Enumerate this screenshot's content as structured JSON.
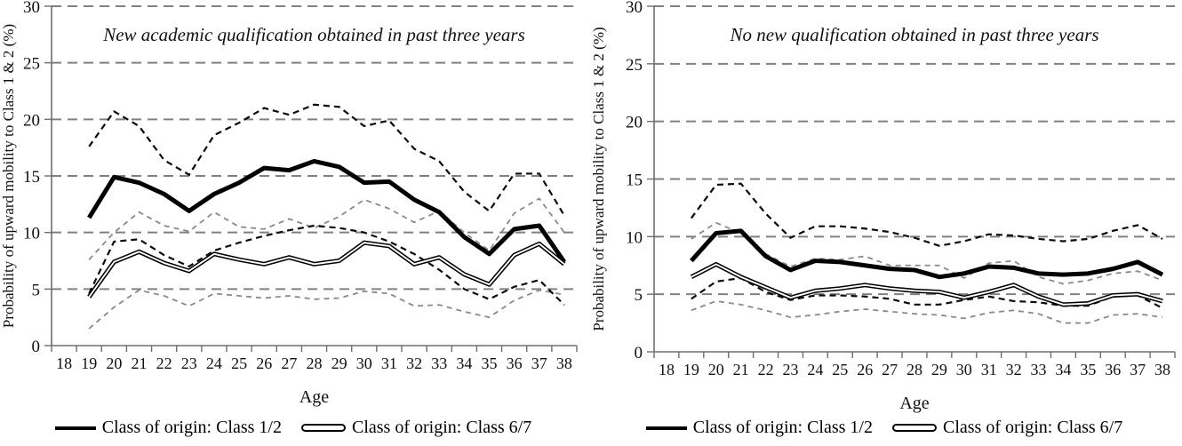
{
  "colors": {
    "series_black": "#000000",
    "ci_dashed_gray": "#8a8a8a",
    "gridline_gray": "#808080",
    "axis_gray": "#6e6e6e",
    "background": "#ffffff"
  },
  "chart_data": [
    {
      "type": "line",
      "title": "New academic qualification obtained in past three years",
      "xlabel": "Age",
      "ylabel": "Probability of upward mobility to Class 1 & 2 (%)",
      "x_ages": [
        19,
        20,
        21,
        22,
        23,
        24,
        25,
        26,
        27,
        28,
        29,
        30,
        31,
        32,
        33,
        34,
        35,
        36,
        37,
        38
      ],
      "xticks": [
        18,
        19,
        20,
        21,
        22,
        23,
        24,
        25,
        26,
        27,
        28,
        29,
        30,
        31,
        32,
        33,
        34,
        35,
        36,
        37,
        38
      ],
      "ylim": [
        0,
        30
      ],
      "yticks": [
        0,
        5,
        10,
        15,
        20,
        25,
        30
      ],
      "grid": "horizontal dashed",
      "legend_position": "bottom",
      "series": [
        {
          "name": "Class of origin: Class 1/2",
          "style": "thick-solid-black",
          "values": [
            11.3,
            14.9,
            14.4,
            13.4,
            11.9,
            13.4,
            14.4,
            15.7,
            15.5,
            16.3,
            15.8,
            14.4,
            14.5,
            12.9,
            11.8,
            9.6,
            8.1,
            10.3,
            10.6,
            7.4
          ]
        },
        {
          "name": "Class 1/2 upper dashed band",
          "style": "dashed-black",
          "values": [
            17.6,
            20.7,
            19.4,
            16.4,
            15.1,
            18.6,
            19.7,
            21.0,
            20.4,
            21.3,
            21.1,
            19.4,
            19.9,
            17.4,
            16.3,
            13.6,
            11.9,
            15.2,
            15.2,
            11.5
          ]
        },
        {
          "name": "Class 1/2 lower dashed band",
          "style": "dashed-black",
          "values": [
            4.6,
            9.2,
            9.4,
            8.0,
            7.0,
            8.4,
            9.1,
            9.7,
            10.2,
            10.6,
            10.4,
            10.0,
            9.2,
            8.1,
            6.7,
            5.0,
            4.1,
            5.2,
            5.8,
            3.6
          ]
        },
        {
          "name": "Class of origin: Class 6/7",
          "style": "double-black",
          "values": [
            4.3,
            7.4,
            8.3,
            7.3,
            6.6,
            8.1,
            7.6,
            7.2,
            7.8,
            7.2,
            7.5,
            9.1,
            8.8,
            7.2,
            7.8,
            6.3,
            5.4,
            8.0,
            9.0,
            7.2
          ]
        },
        {
          "name": "Class 6/7 upper dashed band",
          "style": "dashed-gray",
          "values": [
            7.6,
            10.0,
            11.8,
            10.6,
            10.1,
            11.8,
            10.5,
            10.3,
            11.2,
            10.4,
            11.4,
            12.9,
            12.1,
            10.9,
            11.9,
            10.0,
            8.4,
            11.7,
            13.0,
            10.0
          ]
        },
        {
          "name": "Class 6/7 lower dashed band",
          "style": "dashed-gray",
          "values": [
            1.5,
            3.4,
            4.9,
            4.4,
            3.5,
            4.6,
            4.4,
            4.2,
            4.4,
            4.1,
            4.2,
            4.8,
            4.6,
            3.5,
            3.6,
            3.0,
            2.5,
            4.0,
            4.9,
            4.5
          ]
        }
      ],
      "legend": [
        {
          "label": "Class of origin: Class 1/2",
          "swatch": "thick-solid"
        },
        {
          "label": "Class of origin: Class 6/7",
          "swatch": "double-line"
        }
      ]
    },
    {
      "type": "line",
      "title": "No new qualification obtained in past three years",
      "xlabel": "Age",
      "ylabel": "Probability of upward mobility to Class 1 & 2 (%)",
      "x_ages": [
        19,
        20,
        21,
        22,
        23,
        24,
        25,
        26,
        27,
        28,
        29,
        30,
        31,
        32,
        33,
        34,
        35,
        36,
        37,
        38
      ],
      "xticks": [
        18,
        19,
        20,
        21,
        22,
        23,
        24,
        25,
        26,
        27,
        28,
        29,
        30,
        31,
        32,
        33,
        34,
        35,
        36,
        37,
        38
      ],
      "ylim": [
        0,
        30
      ],
      "yticks": [
        0,
        5,
        10,
        15,
        20,
        25,
        30
      ],
      "grid": "horizontal dashed",
      "legend_position": "bottom",
      "series": [
        {
          "name": "Class of origin: Class 1/2",
          "style": "thick-solid-black",
          "values": [
            7.9,
            10.3,
            10.5,
            8.3,
            7.1,
            7.9,
            7.8,
            7.5,
            7.2,
            7.1,
            6.5,
            6.8,
            7.4,
            7.3,
            6.8,
            6.7,
            6.8,
            7.2,
            7.8,
            6.7
          ]
        },
        {
          "name": "Class 1/2 upper dashed band",
          "style": "dashed-black",
          "values": [
            11.6,
            14.5,
            14.6,
            12.0,
            9.9,
            10.9,
            10.9,
            10.7,
            10.4,
            9.9,
            9.2,
            9.6,
            10.2,
            10.1,
            9.8,
            9.6,
            9.8,
            10.5,
            11.0,
            9.8
          ]
        },
        {
          "name": "Class 1/2 lower dashed band",
          "style": "dashed-black",
          "values": [
            4.6,
            6.1,
            6.4,
            5.2,
            4.5,
            4.9,
            4.9,
            4.8,
            4.6,
            4.1,
            4.1,
            4.5,
            4.8,
            4.4,
            4.3,
            4.0,
            4.0,
            4.8,
            4.9,
            3.8
          ]
        },
        {
          "name": "Class of origin: Class 6/7",
          "style": "double-black",
          "values": [
            6.5,
            7.6,
            6.5,
            5.6,
            4.7,
            5.3,
            5.5,
            5.8,
            5.5,
            5.3,
            5.2,
            4.7,
            5.2,
            5.8,
            4.8,
            4.1,
            4.2,
            4.9,
            5.0,
            4.4
          ]
        },
        {
          "name": "Class 6/7 upper dashed band",
          "style": "dashed-gray",
          "values": [
            9.8,
            11.2,
            10.3,
            8.5,
            7.4,
            8.1,
            8.0,
            8.3,
            7.5,
            7.5,
            7.5,
            6.4,
            7.7,
            7.9,
            6.5,
            5.9,
            6.2,
            6.8,
            7.0,
            6.2
          ]
        },
        {
          "name": "Class 6/7 lower dashed band",
          "style": "dashed-gray",
          "values": [
            3.6,
            4.4,
            4.1,
            3.6,
            3.0,
            3.2,
            3.5,
            3.7,
            3.5,
            3.3,
            3.2,
            2.9,
            3.4,
            3.6,
            3.3,
            2.5,
            2.5,
            3.2,
            3.3,
            3.0
          ]
        }
      ],
      "legend": [
        {
          "label": "Class of origin: Class 1/2",
          "swatch": "thick-solid"
        },
        {
          "label": "Class of origin: Class 6/7",
          "swatch": "double-line"
        }
      ]
    }
  ]
}
